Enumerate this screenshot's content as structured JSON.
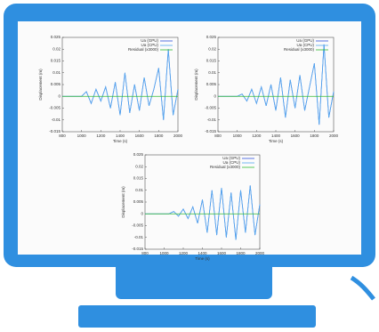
{
  "chart_data": [
    {
      "type": "line",
      "x_label": "Time (s)",
      "y_label": "Displacement (m)",
      "x": [
        800,
        850,
        900,
        950,
        1000,
        1050,
        1100,
        1150,
        1200,
        1250,
        1300,
        1350,
        1400,
        1450,
        1500,
        1550,
        1600,
        1650,
        1700,
        1750,
        1800,
        1850,
        1900,
        1950,
        2000
      ],
      "series": [
        {
          "name": "Ua (GPU)",
          "color": "#3355dd",
          "values": [
            0,
            0,
            0,
            0,
            0,
            0.002,
            -0.003,
            0.003,
            -0.002,
            0.004,
            -0.005,
            0.006,
            -0.008,
            0.01,
            -0.007,
            0.005,
            -0.006,
            0.008,
            -0.004,
            0.003,
            0.012,
            -0.01,
            0.02,
            -0.008,
            0.003
          ]
        },
        {
          "name": "Ua (CPU)",
          "color": "#55aaee",
          "values": [
            0,
            0,
            0,
            0,
            0,
            0.002,
            -0.003,
            0.003,
            -0.002,
            0.004,
            -0.005,
            0.006,
            -0.008,
            0.01,
            -0.007,
            0.005,
            -0.006,
            0.008,
            -0.004,
            0.003,
            0.012,
            -0.01,
            0.02,
            -0.008,
            0.003
          ]
        },
        {
          "name": "Residual (x3000)",
          "color": "#33bb33",
          "values": [
            0,
            0,
            0,
            0,
            0,
            0,
            0,
            0,
            0,
            0,
            0,
            0,
            0,
            0,
            0,
            0,
            0,
            0,
            0,
            0,
            0,
            0,
            0,
            0,
            0
          ]
        }
      ],
      "xlim": [
        800,
        2000
      ],
      "xticks": [
        800,
        1000,
        1200,
        1400,
        1600,
        1800,
        2000
      ],
      "ylim": [
        -0.015,
        0.025
      ],
      "yticks": [
        -0.015,
        -0.01,
        -0.005,
        0,
        0.005,
        0.01,
        0.015,
        0.02,
        0.025
      ]
    },
    {
      "type": "line",
      "x_label": "Time (s)",
      "y_label": "Displacement (m)",
      "x": [
        800,
        850,
        900,
        950,
        1000,
        1050,
        1100,
        1150,
        1200,
        1250,
        1300,
        1350,
        1400,
        1450,
        1500,
        1550,
        1600,
        1650,
        1700,
        1750,
        1800,
        1850,
        1900,
        1950,
        2000
      ],
      "series": [
        {
          "name": "Ua (GPU)",
          "color": "#3355dd",
          "values": [
            0,
            0,
            0,
            0,
            0,
            0.001,
            -0.002,
            0.003,
            -0.003,
            0.004,
            -0.004,
            0.005,
            -0.006,
            0.008,
            -0.009,
            0.007,
            -0.005,
            0.009,
            -0.006,
            0.004,
            0.014,
            -0.012,
            0.022,
            -0.009,
            0.002
          ]
        },
        {
          "name": "Ua (CPU)",
          "color": "#55aaee",
          "values": [
            0,
            0,
            0,
            0,
            0,
            0.001,
            -0.002,
            0.003,
            -0.003,
            0.004,
            -0.004,
            0.005,
            -0.006,
            0.008,
            -0.009,
            0.007,
            -0.005,
            0.009,
            -0.006,
            0.004,
            0.014,
            -0.012,
            0.022,
            -0.009,
            0.002
          ]
        },
        {
          "name": "Residual (x3000)",
          "color": "#33bb33",
          "values": [
            0,
            0,
            0,
            0,
            0,
            0,
            0,
            0,
            0,
            0,
            0,
            0,
            0,
            0,
            0,
            0,
            0,
            0,
            0,
            0,
            0,
            0,
            0,
            0,
            0
          ]
        }
      ],
      "xlim": [
        800,
        2000
      ],
      "xticks": [
        800,
        1000,
        1200,
        1400,
        1600,
        1800,
        2000
      ],
      "ylim": [
        -0.015,
        0.025
      ],
      "yticks": [
        -0.015,
        -0.01,
        -0.005,
        0,
        0.005,
        0.01,
        0.015,
        0.02,
        0.025
      ]
    },
    {
      "type": "line",
      "x_label": "Time (s)",
      "y_label": "Displacement (m)",
      "x": [
        800,
        850,
        900,
        950,
        1000,
        1050,
        1100,
        1150,
        1200,
        1250,
        1300,
        1350,
        1400,
        1450,
        1500,
        1550,
        1600,
        1650,
        1700,
        1750,
        1800,
        1850,
        1900,
        1950,
        2000
      ],
      "series": [
        {
          "name": "Ua (GPU)",
          "color": "#3355dd",
          "values": [
            0,
            0,
            0,
            0,
            0,
            0,
            0.001,
            -0.001,
            0.002,
            -0.002,
            0.003,
            -0.004,
            0.006,
            -0.008,
            0.01,
            -0.009,
            0.011,
            -0.01,
            0.009,
            -0.011,
            0.01,
            -0.008,
            0.012,
            -0.009,
            0.004
          ]
        },
        {
          "name": "Ua (CPU)",
          "color": "#55aaee",
          "values": [
            0,
            0,
            0,
            0,
            0,
            0,
            0.001,
            -0.001,
            0.002,
            -0.002,
            0.003,
            -0.004,
            0.006,
            -0.008,
            0.01,
            -0.009,
            0.011,
            -0.01,
            0.009,
            -0.011,
            0.01,
            -0.008,
            0.012,
            -0.009,
            0.004
          ]
        },
        {
          "name": "Residual (x3000)",
          "color": "#33bb33",
          "values": [
            0,
            0,
            0,
            0,
            0,
            0,
            0,
            0,
            0,
            0,
            0,
            0,
            0,
            0,
            0,
            0,
            0,
            0,
            0,
            0,
            0,
            0,
            0,
            0,
            0
          ]
        }
      ],
      "xlim": [
        800,
        2000
      ],
      "xticks": [
        800,
        1000,
        1200,
        1400,
        1600,
        1800,
        2000
      ],
      "ylim": [
        -0.015,
        0.025
      ],
      "yticks": [
        -0.015,
        -0.01,
        -0.005,
        0,
        0.005,
        0.01,
        0.015,
        0.02,
        0.025
      ]
    }
  ]
}
